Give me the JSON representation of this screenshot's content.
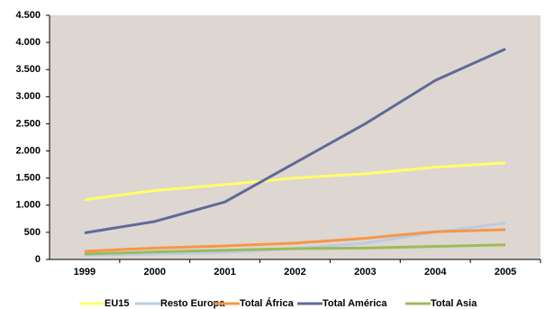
{
  "chart_data": {
    "type": "line",
    "categories": [
      "1999",
      "2000",
      "2001",
      "2002",
      "2003",
      "2004",
      "2005"
    ],
    "series": [
      {
        "name": "EU15",
        "color": "#ffff66",
        "values": [
          1100,
          1270,
          1380,
          1500,
          1580,
          1700,
          1780
        ]
      },
      {
        "name": "Resto Europa",
        "color": "#b8cce4",
        "values": [
          80,
          100,
          130,
          200,
          300,
          500,
          670
        ]
      },
      {
        "name": "Total África",
        "color": "#f79646",
        "values": [
          150,
          210,
          250,
          300,
          390,
          510,
          550
        ]
      },
      {
        "name": "Total América",
        "color": "#5f6a99",
        "values": [
          490,
          700,
          1060,
          1780,
          2500,
          3300,
          3880
        ]
      },
      {
        "name": "Total Asia",
        "color": "#9bbb59",
        "values": [
          100,
          140,
          170,
          200,
          210,
          240,
          270
        ]
      }
    ],
    "ylim": [
      0,
      4500
    ],
    "yticks": [
      0,
      500,
      {
        "value": 1000,
        "label": "1.000"
      },
      {
        "value": 1500,
        "label": "1.500"
      },
      {
        "value": 2000,
        "label": "2.000"
      },
      {
        "value": 2500,
        "label": "2.500"
      },
      {
        "value": 3000,
        "label": "3.000"
      },
      {
        "value": 3500,
        "label": "3.500"
      },
      {
        "value": 4000,
        "label": "4.000"
      },
      {
        "value": 4500,
        "label": "4.500"
      }
    ],
    "legend": "bottom"
  }
}
